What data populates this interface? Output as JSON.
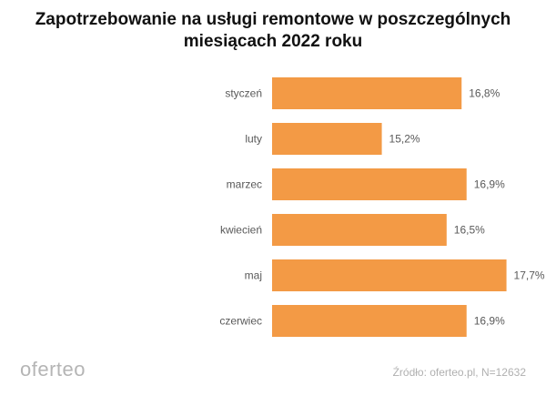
{
  "chart_data": {
    "type": "bar",
    "orientation": "horizontal",
    "title": "Zapotrzebowanie na usługi remontowe w poszczególnych miesiącach 2022 roku",
    "title_lines": [
      "Zapotrzebowanie na usługi remontowe w poszczególnych",
      "miesiącach 2022 roku"
    ],
    "categories": [
      "styczeń",
      "luty",
      "marzec",
      "kwiecień",
      "maj",
      "czerwiec"
    ],
    "values": [
      16.8,
      15.2,
      16.9,
      16.5,
      17.7,
      16.9
    ],
    "data_labels": [
      "16,8%",
      "15,2%",
      "16,9%",
      "16,5%",
      "17,7%",
      "16,9%"
    ],
    "unit": "%",
    "xlim": [
      13,
      18
    ],
    "xlabel": "",
    "ylabel": "",
    "grid": false,
    "bar_color": "#F39A45"
  },
  "footer": {
    "logo": "oferteo",
    "source": "Źródło: oferteo.pl, N=12632"
  }
}
